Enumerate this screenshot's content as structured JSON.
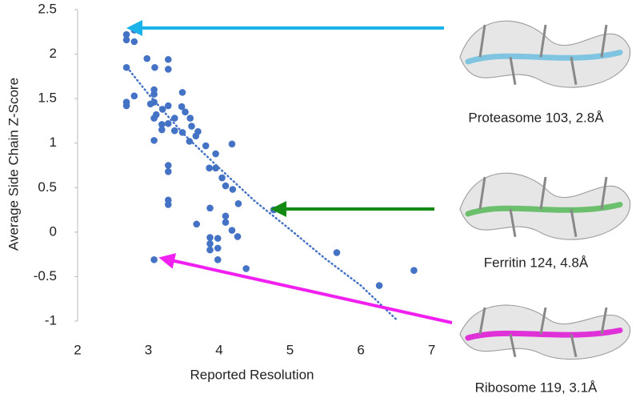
{
  "chart_data": {
    "type": "scatter",
    "x_label": "Reported Resolution",
    "y_label": "Average Side Chain Z-Score",
    "xlim": [
      2,
      7.05
    ],
    "ylim": [
      -1,
      2.5
    ],
    "xticks": [
      2,
      3,
      4,
      5,
      6,
      7
    ],
    "yticks": [
      2.5,
      2,
      1.5,
      1,
      0.5,
      0,
      -0.5,
      -1
    ],
    "series": [
      {
        "color": "#4472c4",
        "x": [
          2.8,
          2.69,
          2.69,
          2.8,
          2.69,
          2.69,
          2.69,
          2.8,
          2.98,
          3.09,
          3.28,
          3.28,
          3.08,
          3.08,
          3.08,
          3.03,
          3.2,
          3.28,
          3.08,
          3.11,
          3.19,
          3.19,
          3.28,
          3.37,
          3.47,
          3.48,
          3.52,
          3.37,
          3.48,
          3.59,
          3.61,
          3.67,
          3.58,
          3.08,
          3.7,
          3.81,
          3.28,
          3.28,
          3.86,
          3.95,
          3.95,
          4.04,
          4.09,
          4.19,
          3.28,
          3.28,
          4.27,
          3.87,
          4.09,
          4.09,
          4.18,
          3.68,
          4.18,
          4.77,
          3.87,
          3.87,
          3.87,
          3.98,
          3.98,
          4.26,
          3.98,
          4.38,
          3.08,
          5.66,
          6.26,
          6.75
        ],
        "values": [
          2.27,
          2.22,
          2.16,
          2.14,
          1.85,
          1.46,
          1.42,
          1.53,
          1.95,
          1.85,
          1.94,
          1.83,
          1.6,
          1.55,
          1.46,
          1.44,
          1.38,
          1.42,
          1.28,
          1.32,
          1.21,
          1.15,
          1.22,
          1.28,
          1.41,
          1.57,
          1.35,
          1.14,
          1.12,
          1.28,
          1.19,
          1.08,
          1.02,
          1.03,
          1.13,
          0.97,
          0.75,
          0.68,
          0.72,
          0.88,
          0.72,
          0.61,
          0.52,
          0.48,
          0.36,
          0.31,
          0.32,
          0.27,
          0.18,
          0.11,
          0.99,
          0.09,
          0.02,
          0.25,
          -0.06,
          -0.13,
          -0.2,
          -0.07,
          -0.18,
          -0.05,
          -0.31,
          -0.41,
          -0.31,
          -0.23,
          -0.6,
          -0.43
        ]
      }
    ],
    "trendline": {
      "color": "#4472c4",
      "x": [
        2.7,
        3,
        3.5,
        4,
        4.5,
        5,
        5.5,
        6,
        6.5
      ],
      "values": [
        1.85,
        1.55,
        1.1,
        0.72,
        0.35,
        0.03,
        -0.3,
        -0.6,
        -0.98
      ]
    },
    "annotations": [
      {
        "text": "Proteasome 103, 2.8Å",
        "color": "#1ab2ea",
        "ribbon": "#7fc4e0"
      },
      {
        "text": "Ferritin 124, 4.8Å",
        "color": "#138a13",
        "ribbon": "#6cbf6c"
      },
      {
        "text": "Ribosome 119, 3.1Å",
        "color": "#f020f0",
        "ribbon": "#e030d8"
      }
    ]
  }
}
